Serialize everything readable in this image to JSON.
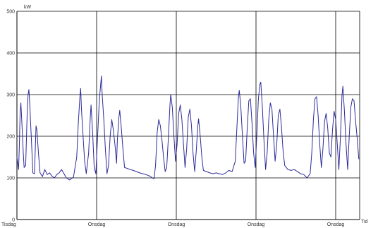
{
  "chart_data": {
    "type": "line",
    "ylabel": "kW",
    "xlabel": "Tid",
    "ylim": [
      0,
      500
    ],
    "yticks": [
      0,
      100,
      200,
      300,
      400,
      500
    ],
    "xlim": [
      0,
      5.3
    ],
    "xticks": [
      {
        "x": 0,
        "label": "Tisdag"
      },
      {
        "x": 1,
        "label": "Onsdag"
      },
      {
        "x": 2,
        "label": "Onsdag"
      },
      {
        "x": 3,
        "label": "Onsdag"
      },
      {
        "x": 4,
        "label": "Onsdag"
      }
    ],
    "grid": true,
    "colors": {
      "line": "#2b2b9a",
      "grid": "#000000",
      "axis": "#000000"
    },
    "series": [
      {
        "values": [
          [
            0.0,
            150
          ],
          [
            0.02,
            120
          ],
          [
            0.03,
            175
          ],
          [
            0.04,
            255
          ],
          [
            0.05,
            280
          ],
          [
            0.06,
            240
          ],
          [
            0.07,
            200
          ],
          [
            0.08,
            160
          ],
          [
            0.09,
            125
          ],
          [
            0.11,
            130
          ],
          [
            0.12,
            200
          ],
          [
            0.13,
            265
          ],
          [
            0.14,
            300
          ],
          [
            0.15,
            312
          ],
          [
            0.16,
            280
          ],
          [
            0.17,
            240
          ],
          [
            0.18,
            200
          ],
          [
            0.19,
            155
          ],
          [
            0.2,
            112
          ],
          [
            0.22,
            110
          ],
          [
            0.23,
            168
          ],
          [
            0.24,
            225
          ],
          [
            0.25,
            215
          ],
          [
            0.27,
            160
          ],
          [
            0.29,
            112
          ],
          [
            0.32,
            103
          ],
          [
            0.35,
            120
          ],
          [
            0.38,
            108
          ],
          [
            0.41,
            112
          ],
          [
            0.44,
            104
          ],
          [
            0.47,
            100
          ],
          [
            0.5,
            108
          ],
          [
            0.53,
            112
          ],
          [
            0.56,
            120
          ],
          [
            0.59,
            110
          ],
          [
            0.62,
            100
          ],
          [
            0.66,
            95
          ],
          [
            0.71,
            102
          ],
          [
            0.75,
            150
          ],
          [
            0.77,
            230
          ],
          [
            0.79,
            295
          ],
          [
            0.8,
            315
          ],
          [
            0.81,
            265
          ],
          [
            0.83,
            200
          ],
          [
            0.85,
            140
          ],
          [
            0.87,
            110
          ],
          [
            0.9,
            160
          ],
          [
            0.92,
            245
          ],
          [
            0.93,
            275
          ],
          [
            0.95,
            210
          ],
          [
            0.97,
            125
          ],
          [
            0.99,
            110
          ],
          [
            1.01,
            190
          ],
          [
            1.03,
            270
          ],
          [
            1.04,
            300
          ],
          [
            1.06,
            345
          ],
          [
            1.07,
            300
          ],
          [
            1.09,
            240
          ],
          [
            1.11,
            170
          ],
          [
            1.13,
            110
          ],
          [
            1.15,
            130
          ],
          [
            1.17,
            200
          ],
          [
            1.19,
            240
          ],
          [
            1.21,
            215
          ],
          [
            1.23,
            180
          ],
          [
            1.25,
            135
          ],
          [
            1.26,
            190
          ],
          [
            1.28,
            245
          ],
          [
            1.29,
            262
          ],
          [
            1.31,
            220
          ],
          [
            1.33,
            170
          ],
          [
            1.35,
            125
          ],
          [
            1.38,
            123
          ],
          [
            1.42,
            120
          ],
          [
            1.46,
            118
          ],
          [
            1.5,
            115
          ],
          [
            1.54,
            112
          ],
          [
            1.58,
            110
          ],
          [
            1.62,
            108
          ],
          [
            1.66,
            105
          ],
          [
            1.7,
            100
          ],
          [
            1.72,
            98
          ],
          [
            1.74,
            130
          ],
          [
            1.76,
            210
          ],
          [
            1.78,
            240
          ],
          [
            1.8,
            225
          ],
          [
            1.82,
            190
          ],
          [
            1.84,
            150
          ],
          [
            1.86,
            115
          ],
          [
            1.88,
            125
          ],
          [
            1.9,
            195
          ],
          [
            1.92,
            275
          ],
          [
            1.93,
            300
          ],
          [
            1.95,
            270
          ],
          [
            1.97,
            200
          ],
          [
            1.99,
            140
          ],
          [
            2.01,
            180
          ],
          [
            2.03,
            255
          ],
          [
            2.05,
            275
          ],
          [
            2.07,
            240
          ],
          [
            2.09,
            180
          ],
          [
            2.11,
            125
          ],
          [
            2.13,
            170
          ],
          [
            2.15,
            245
          ],
          [
            2.17,
            265
          ],
          [
            2.19,
            225
          ],
          [
            2.21,
            160
          ],
          [
            2.23,
            115
          ],
          [
            2.25,
            165
          ],
          [
            2.27,
            225
          ],
          [
            2.28,
            242
          ],
          [
            2.3,
            200
          ],
          [
            2.32,
            150
          ],
          [
            2.34,
            118
          ],
          [
            2.38,
            115
          ],
          [
            2.42,
            112
          ],
          [
            2.46,
            110
          ],
          [
            2.5,
            112
          ],
          [
            2.54,
            110
          ],
          [
            2.58,
            108
          ],
          [
            2.62,
            112
          ],
          [
            2.66,
            118
          ],
          [
            2.7,
            115
          ],
          [
            2.74,
            140
          ],
          [
            2.76,
            220
          ],
          [
            2.78,
            295
          ],
          [
            2.79,
            310
          ],
          [
            2.81,
            270
          ],
          [
            2.83,
            200
          ],
          [
            2.85,
            135
          ],
          [
            2.87,
            140
          ],
          [
            2.89,
            220
          ],
          [
            2.91,
            285
          ],
          [
            2.93,
            290
          ],
          [
            2.95,
            230
          ],
          [
            2.97,
            160
          ],
          [
            2.99,
            125
          ],
          [
            3.01,
            200
          ],
          [
            3.03,
            290
          ],
          [
            3.05,
            325
          ],
          [
            3.06,
            330
          ],
          [
            3.08,
            270
          ],
          [
            3.1,
            190
          ],
          [
            3.12,
            120
          ],
          [
            3.14,
            160
          ],
          [
            3.16,
            240
          ],
          [
            3.18,
            280
          ],
          [
            3.2,
            265
          ],
          [
            3.22,
            200
          ],
          [
            3.24,
            140
          ],
          [
            3.26,
            180
          ],
          [
            3.28,
            250
          ],
          [
            3.3,
            265
          ],
          [
            3.32,
            220
          ],
          [
            3.34,
            165
          ],
          [
            3.36,
            130
          ],
          [
            3.4,
            120
          ],
          [
            3.44,
            118
          ],
          [
            3.48,
            120
          ],
          [
            3.52,
            115
          ],
          [
            3.56,
            110
          ],
          [
            3.6,
            108
          ],
          [
            3.64,
            100
          ],
          [
            3.68,
            110
          ],
          [
            3.7,
            160
          ],
          [
            3.72,
            240
          ],
          [
            3.74,
            290
          ],
          [
            3.76,
            295
          ],
          [
            3.78,
            250
          ],
          [
            3.8,
            180
          ],
          [
            3.82,
            125
          ],
          [
            3.84,
            170
          ],
          [
            3.86,
            235
          ],
          [
            3.88,
            255
          ],
          [
            3.9,
            220
          ],
          [
            3.92,
            160
          ],
          [
            3.94,
            150
          ],
          [
            3.96,
            215
          ],
          [
            3.98,
            260
          ],
          [
            4.0,
            240
          ],
          [
            4.02,
            180
          ],
          [
            4.04,
            120
          ],
          [
            4.06,
            200
          ],
          [
            4.08,
            300
          ],
          [
            4.09,
            320
          ],
          [
            4.11,
            260
          ],
          [
            4.13,
            180
          ],
          [
            4.15,
            120
          ],
          [
            4.17,
            200
          ],
          [
            4.19,
            270
          ],
          [
            4.21,
            290
          ],
          [
            4.23,
            285
          ],
          [
            4.25,
            235
          ],
          [
            4.27,
            195
          ],
          [
            4.29,
            145
          ]
        ]
      }
    ]
  }
}
